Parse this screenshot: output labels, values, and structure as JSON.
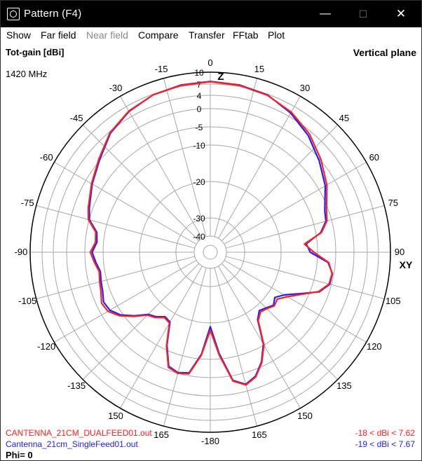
{
  "window": {
    "title": "Pattern   (F4)",
    "minimize": "—",
    "maximize": "☐",
    "close": "✕"
  },
  "menu": [
    {
      "label": "Show",
      "enabled": true
    },
    {
      "label": "Far field",
      "enabled": true
    },
    {
      "label": "Near field",
      "enabled": false
    },
    {
      "label": "Compare",
      "enabled": true
    },
    {
      "label": "Transfer",
      "enabled": true
    },
    {
      "label": "FFtab",
      "enabled": true
    },
    {
      "label": "Plot",
      "enabled": true
    }
  ],
  "plot": {
    "quantity": "Tot-gain [dBi]",
    "frequency": "1420 MHz",
    "plane": "Vertical plane",
    "axis_top": "Z",
    "axis_right": "XY",
    "phi": "Phi= 0"
  },
  "chart_data": {
    "type": "polar",
    "angle_labels": [
      "0",
      "15",
      "30",
      "45",
      "60",
      "75",
      "90",
      "105",
      "120",
      "135",
      "150",
      "165",
      "-180",
      "165",
      "150",
      "-135",
      "-120",
      "-105",
      "-90",
      "-75",
      "-60",
      "-45",
      "-30",
      "-15"
    ],
    "radial_labels": [
      "10",
      "7",
      "4",
      "0",
      "-5",
      "-10",
      "-20",
      "-30",
      "-40"
    ],
    "radial_levels_dbi": [
      10,
      7,
      4,
      0,
      -5,
      -10,
      -20,
      -30,
      -40
    ],
    "angle_step_deg": 15,
    "colors": {
      "series1": "#ff2020",
      "series2": "#2020ff",
      "grid": "#a8a8a8",
      "outer": "#000000"
    },
    "series": [
      {
        "name": "CANTENNA_21CM_DUALFEED01.out",
        "range": "-18 < dBi < 7.62",
        "theta": [
          0,
          10,
          20,
          30,
          40,
          50,
          60,
          70,
          75,
          80,
          85,
          90,
          95,
          100,
          105,
          110,
          115,
          120,
          125,
          130,
          135,
          140,
          145,
          150,
          155,
          160,
          165,
          170,
          175,
          180,
          185,
          190,
          195,
          200,
          205,
          210,
          215,
          220,
          225,
          230,
          235,
          240,
          245,
          250,
          255,
          260,
          265,
          270,
          275,
          280,
          285,
          290,
          300,
          310,
          320,
          330,
          340,
          350,
          360
        ],
        "gain": [
          7.6,
          7.3,
          6.7,
          5.3,
          3.2,
          0.2,
          -2.5,
          -5.5,
          -6.3,
          -8.5,
          -13.5,
          -11,
          -6.8,
          -5.5,
          -5.7,
          -7.8,
          -12,
          -15,
          -17,
          -16.5,
          -17.5,
          -18,
          -16.5,
          -10,
          -6,
          -3,
          -1.7,
          -3.5,
          -11,
          -18,
          -11,
          -5.5,
          -5,
          -5.8,
          -11,
          -17,
          -17.5,
          -16,
          -15,
          -12,
          -9,
          -7,
          -6.5,
          -7.5,
          -8,
          -8.5,
          -7.5,
          -6.5,
          -7.8,
          -7.5,
          -4.8,
          -3.8,
          -1.8,
          0.5,
          3.7,
          5.6,
          6.8,
          7.3,
          7.6
        ]
      },
      {
        "name": "Cantenna_21cm_SingleFeed01.out",
        "range": "-19 < dBi < 7.67",
        "theta": [
          0,
          10,
          20,
          30,
          40,
          50,
          60,
          70,
          75,
          80,
          85,
          90,
          95,
          100,
          105,
          110,
          115,
          120,
          125,
          130,
          135,
          140,
          145,
          150,
          155,
          160,
          165,
          170,
          175,
          180,
          185,
          190,
          195,
          200,
          205,
          210,
          215,
          220,
          225,
          230,
          235,
          240,
          245,
          250,
          255,
          260,
          265,
          270,
          275,
          280,
          285,
          290,
          300,
          310,
          320,
          330,
          340,
          350,
          360
        ],
        "gain": [
          7.67,
          7.4,
          6.8,
          5.0,
          2.6,
          -0.4,
          -3.0,
          -6.0,
          -6.6,
          -8.7,
          -13.0,
          -12,
          -7.0,
          -5.4,
          -5.5,
          -7.6,
          -12.5,
          -16,
          -17.8,
          -16.8,
          -17.8,
          -18.5,
          -16.8,
          -10.3,
          -6.2,
          -3.2,
          -1.9,
          -3.7,
          -11.5,
          -19,
          -11.3,
          -5.8,
          -5.2,
          -6.1,
          -11.3,
          -17.3,
          -17.8,
          -16.3,
          -15.3,
          -12.3,
          -9.4,
          -7.6,
          -7.1,
          -8.0,
          -8.4,
          -8.8,
          -7.9,
          -7.0,
          -8.2,
          -7.8,
          -5.1,
          -4.1,
          -2.0,
          0.2,
          3.5,
          5.5,
          6.8,
          7.4,
          7.67
        ]
      }
    ]
  }
}
